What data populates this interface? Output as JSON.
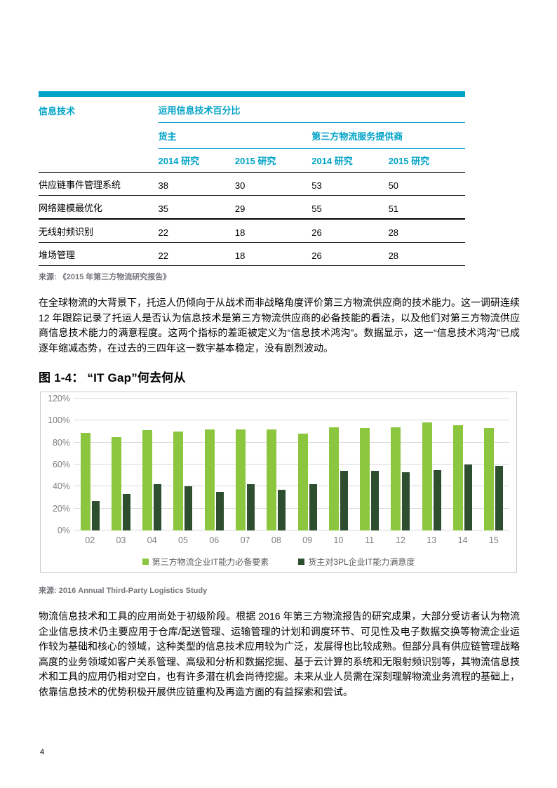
{
  "colors": {
    "accent_teal": "#00A3C7",
    "light_green": "#8CC63F",
    "dark_green": "#2E4E30",
    "gridline_gray": "#D9D9D9",
    "axis_text_gray": "#808080"
  },
  "table": {
    "col1_header": "信息技术",
    "col2_header": "运用信息技术百分比",
    "group_headers": [
      "货主",
      "第三方物流服务提供商"
    ],
    "sub_headers": [
      "2014 研究",
      "2015 研究",
      "2014 研究",
      "2015 研究"
    ],
    "rows": [
      {
        "label": "供应链事件管理系统",
        "values": [
          "38",
          "30",
          "53",
          "50"
        ]
      },
      {
        "label": "网络建模最优化",
        "values": [
          "35",
          "29",
          "55",
          "51"
        ]
      },
      {
        "label": "无线射频识别",
        "values": [
          "22",
          "18",
          "26",
          "28"
        ]
      },
      {
        "label": "堆场管理",
        "values": [
          "22",
          "18",
          "26",
          "28"
        ]
      }
    ],
    "source": "来源: 《2015 年第三方物流研究报告》"
  },
  "paragraph1": "在全球物流的大背景下，托运人仍倾向于从战术而非战略角度评价第三方物流供应商的技术能力。这一调研连续 12 年跟踪记录了托运人是否认为信息技术是第三方物流供应商的必备技能的看法，以及他们对第三方物流供应商信息技术能力的满意程度。这两个指标的差距被定义为“信息技术鸿沟”。数据显示，这一“信息技术鸿沟”已成逐年缩减态势，在过去的三四年这一数字基本稳定，没有剧烈波动。",
  "figure": {
    "title": "图 1-4： “IT Gap”何去何从",
    "source": "来源: 2016 Annual Third-Party Logistics Study"
  },
  "chart_data": {
    "type": "bar",
    "title": "图 1-4： “IT Gap”何去何从",
    "categories": [
      "02",
      "03",
      "04",
      "05",
      "06",
      "07",
      "08",
      "09",
      "10",
      "11",
      "12",
      "13",
      "14",
      "15"
    ],
    "series": [
      {
        "name": "第三方物流企业IT能力必备要素",
        "color": "#8CC63F",
        "values": [
          89,
          85,
          91,
          90,
          92,
          92,
          92,
          88,
          94,
          93,
          94,
          98,
          96,
          93
        ]
      },
      {
        "name": "货主对3PL企业IT能力满意度",
        "color": "#2E4E30",
        "values": [
          27,
          33,
          42,
          40,
          35,
          42,
          37,
          42,
          54,
          54,
          53,
          55,
          60,
          59
        ]
      }
    ],
    "ylim": [
      0,
      120
    ],
    "ytick_step": 20,
    "yticks": [
      "120%",
      "100%",
      "80%",
      "60%",
      "40%",
      "20%",
      "0%"
    ],
    "xlabel": "",
    "ylabel": "",
    "grid": "horizontal",
    "legend_position": "bottom"
  },
  "paragraph2": "物流信息技术和工具的应用尚处于初级阶段。根据 2016 年第三方物流报告的研究成果，大部分受访者认为物流企业信息技术仍主要应用于仓库/配送管理、运输管理的计划和调度环节、可见性及电子数据交换等物流企业运作较为基础和核心的领域，这种类型的信息技术应用较为广泛，发展得也比较成熟。但部分具有供应链管理战略高度的业务领域如客户关系管理、高级和分析和数据挖掘、基于云计算的系统和无限射频识别等，其物流信息技术和工具的应用仍相对空白，也有许多潜在机会尚待挖掘。未来从业人员需在深刻理解物流业务流程的基础上，依靠信息技术的优势积极开展供应链重构及再造方面的有益探索和尝试。",
  "page": {
    "number": "4"
  }
}
